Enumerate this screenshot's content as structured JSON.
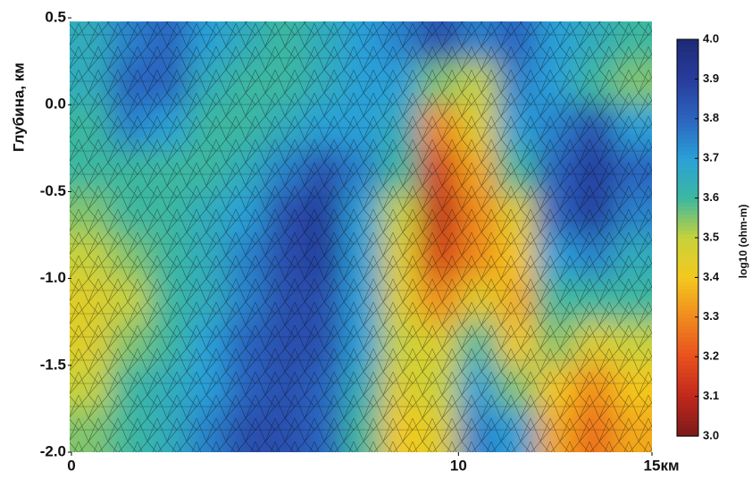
{
  "chart_data": {
    "type": "heatmap",
    "ylabel": "Глубина, км",
    "xunit": "км",
    "colorbar_label": "log10 (ohm-m)",
    "x": [
      0.5,
      1.5,
      2.5,
      3.5,
      4.5,
      5.5,
      6.5,
      7.5,
      8.5,
      9.5,
      10.5,
      11.5,
      12.5,
      13.5,
      14.5
    ],
    "y": [
      0.375,
      0.125,
      -0.125,
      -0.375,
      -0.625,
      -0.875,
      -1.125,
      -1.375,
      -1.625,
      -1.875
    ],
    "values": [
      [
        3.65,
        3.75,
        3.8,
        3.7,
        3.65,
        3.6,
        3.65,
        3.7,
        3.75,
        3.85,
        3.75,
        3.8,
        3.7,
        3.65,
        3.6
      ],
      [
        3.65,
        3.8,
        3.8,
        3.65,
        3.6,
        3.6,
        3.65,
        3.7,
        3.7,
        3.55,
        3.5,
        3.75,
        3.7,
        3.6,
        3.55
      ],
      [
        3.6,
        3.75,
        3.7,
        3.6,
        3.6,
        3.65,
        3.7,
        3.7,
        3.65,
        3.3,
        3.45,
        3.7,
        3.75,
        3.85,
        3.7
      ],
      [
        3.6,
        3.6,
        3.6,
        3.6,
        3.65,
        3.75,
        3.85,
        3.75,
        3.6,
        3.15,
        3.35,
        3.6,
        3.8,
        3.9,
        3.8
      ],
      [
        3.55,
        3.6,
        3.6,
        3.65,
        3.7,
        3.85,
        3.9,
        3.7,
        3.5,
        3.1,
        3.3,
        3.45,
        3.8,
        3.9,
        3.75
      ],
      [
        3.5,
        3.55,
        3.6,
        3.65,
        3.75,
        3.85,
        3.9,
        3.7,
        3.45,
        3.15,
        3.3,
        3.4,
        3.7,
        3.75,
        3.65
      ],
      [
        3.45,
        3.5,
        3.6,
        3.65,
        3.75,
        3.85,
        3.85,
        3.7,
        3.45,
        3.3,
        3.45,
        3.35,
        3.6,
        3.6,
        3.6
      ],
      [
        3.45,
        3.55,
        3.6,
        3.7,
        3.8,
        3.85,
        3.85,
        3.7,
        3.5,
        3.45,
        3.6,
        3.4,
        3.55,
        3.45,
        3.5
      ],
      [
        3.5,
        3.6,
        3.65,
        3.7,
        3.8,
        3.85,
        3.8,
        3.65,
        3.45,
        3.5,
        3.7,
        3.55,
        3.4,
        3.3,
        3.4
      ],
      [
        3.55,
        3.6,
        3.65,
        3.75,
        3.85,
        3.85,
        3.8,
        3.6,
        3.4,
        3.45,
        3.75,
        3.7,
        3.35,
        3.25,
        3.35
      ]
    ],
    "xlim": [
      0,
      15
    ],
    "ylim": [
      -2.0,
      0.5
    ],
    "xticks": [
      0,
      10,
      15
    ],
    "yticks": [
      0.5,
      {
        "value": 0,
        "label": "0.0"
      },
      -0.5,
      {
        "value": -1,
        "label": "-1.0"
      },
      -1.5,
      {
        "value": -2,
        "label": "-2.0"
      }
    ],
    "zlim": [
      3,
      4
    ],
    "zticks": [
      {
        "value": 3,
        "label": "3.0"
      },
      3.1,
      3.2,
      3.3,
      3.4,
      3.5,
      3.6,
      3.7,
      3.8,
      3.9,
      {
        "value": 4,
        "label": "4.0"
      }
    ],
    "colorscale": [
      "#7a1a1a",
      "#c0281c",
      "#e8501e",
      "#f08a1e",
      "#f4c81e",
      "#c8d23a",
      "#3cb8a0",
      "#2aa0d8",
      "#2c64c0",
      "#283c9c",
      "#1e2a78"
    ]
  }
}
